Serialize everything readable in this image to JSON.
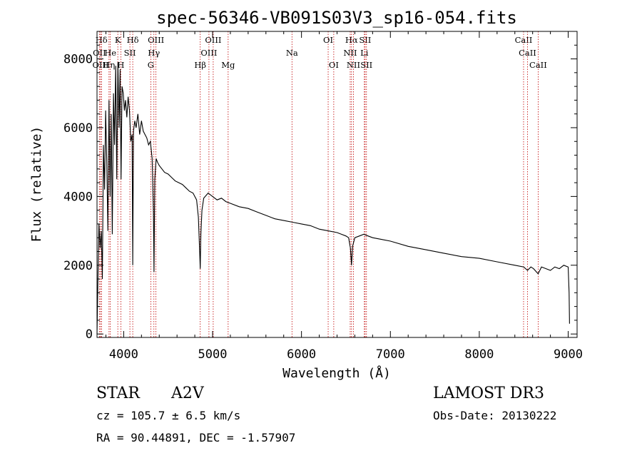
{
  "chart_data": {
    "type": "line",
    "title": "spec-56346-VB091S03V3_sp16-054.fits",
    "xlabel": "Wavelength (Å)",
    "ylabel": "Flux (relative)",
    "xlim": [
      3700,
      9100
    ],
    "ylim": [
      -100,
      8800
    ],
    "xticks": [
      4000,
      5000,
      6000,
      7000,
      8000,
      9000
    ],
    "yticks": [
      0,
      2000,
      4000,
      6000,
      8000
    ],
    "series": [
      {
        "name": "spectrum",
        "x": [
          3700,
          3710,
          3722,
          3735,
          3748,
          3760,
          3772,
          3785,
          3797,
          3810,
          3822,
          3835,
          3848,
          3860,
          3872,
          3885,
          3897,
          3910,
          3922,
          3935,
          3948,
          3960,
          3970,
          3982,
          3995,
          4008,
          4020,
          4035,
          4050,
          4065,
          4080,
          4095,
          4102,
          4110,
          4125,
          4140,
          4160,
          4180,
          4200,
          4220,
          4240,
          4260,
          4280,
          4300,
          4320,
          4335,
          4341,
          4350,
          4365,
          4380,
          4400,
          4430,
          4460,
          4500,
          4540,
          4580,
          4620,
          4660,
          4700,
          4740,
          4780,
          4820,
          4840,
          4855,
          4861,
          4868,
          4880,
          4900,
          4950,
          5000,
          5050,
          5100,
          5150,
          5200,
          5300,
          5400,
          5500,
          5600,
          5700,
          5800,
          5900,
          6000,
          6100,
          6200,
          6300,
          6400,
          6450,
          6500,
          6530,
          6550,
          6563,
          6575,
          6600,
          6650,
          6700,
          6750,
          6800,
          6900,
          7000,
          7200,
          7400,
          7600,
          7800,
          8000,
          8200,
          8400,
          8500,
          8542,
          8580,
          8610,
          8662,
          8700,
          8750,
          8800,
          8850,
          8900,
          8950,
          9000,
          9010,
          9015
        ],
        "y": [
          0,
          1500,
          3200,
          2500,
          3000,
          1600,
          5500,
          4200,
          6500,
          5000,
          3000,
          6800,
          4000,
          6400,
          2900,
          7000,
          5500,
          7800,
          4500,
          7900,
          6000,
          7700,
          4500,
          7200,
          7000,
          6500,
          6800,
          6300,
          6900,
          6500,
          5600,
          5800,
          2000,
          5900,
          6200,
          6000,
          6400,
          5800,
          6200,
          5900,
          5800,
          5700,
          5500,
          5600,
          5100,
          3500,
          1800,
          4500,
          5100,
          5000,
          4900,
          4800,
          4700,
          4650,
          4550,
          4450,
          4400,
          4350,
          4250,
          4150,
          4100,
          3900,
          3400,
          2400,
          1900,
          2900,
          3600,
          3950,
          4100,
          4000,
          3900,
          3950,
          3850,
          3800,
          3700,
          3650,
          3550,
          3450,
          3350,
          3300,
          3250,
          3200,
          3150,
          3050,
          3000,
          2950,
          2900,
          2850,
          2800,
          2500,
          2000,
          2550,
          2800,
          2850,
          2900,
          2850,
          2800,
          2750,
          2700,
          2550,
          2450,
          2350,
          2250,
          2200,
          2100,
          2000,
          1950,
          1850,
          1950,
          1900,
          1750,
          1950,
          1900,
          1850,
          1950,
          1900,
          2000,
          1950,
          1200,
          300
        ]
      }
    ],
    "lines": [
      {
        "name": "Hδ",
        "x": 3750,
        "row": 0
      },
      {
        "name": "K",
        "x": 3934,
        "row": 0
      },
      {
        "name": "Hδ",
        "x": 4102,
        "row": 0
      },
      {
        "name": "OIII",
        "x": 4363,
        "row": 0
      },
      {
        "name": "OIII",
        "x": 5007,
        "row": 0
      },
      {
        "name": "OI",
        "x": 6300,
        "row": 0
      },
      {
        "name": "Hα",
        "x": 6563,
        "row": 0
      },
      {
        "name": "SII",
        "x": 6716,
        "row": 0
      },
      {
        "name": "CaII",
        "x": 8498,
        "row": 0
      },
      {
        "name": "OII",
        "x": 3727,
        "row": 1
      },
      {
        "name": "He",
        "x": 3850,
        "row": 1
      },
      {
        "name": "SII",
        "x": 4070,
        "row": 1
      },
      {
        "name": "Hγ",
        "x": 4340,
        "row": 1
      },
      {
        "name": "OIII",
        "x": 4959,
        "row": 1
      },
      {
        "name": "Na",
        "x": 5893,
        "row": 1
      },
      {
        "name": "NII",
        "x": 6548,
        "row": 1
      },
      {
        "name": "Li",
        "x": 6707,
        "row": 1
      },
      {
        "name": "CaII",
        "x": 8542,
        "row": 1
      },
      {
        "name": "OIII",
        "x": 3740,
        "row": 2
      },
      {
        "name": "Hη",
        "x": 3835,
        "row": 2
      },
      {
        "name": "H",
        "x": 3968,
        "row": 2
      },
      {
        "name": "G",
        "x": 4305,
        "row": 2
      },
      {
        "name": "Hβ",
        "x": 4861,
        "row": 2
      },
      {
        "name": "Mg",
        "x": 5175,
        "row": 2
      },
      {
        "name": "OI",
        "x": 6363,
        "row": 2
      },
      {
        "name": "NII",
        "x": 6584,
        "row": 2
      },
      {
        "name": "SII",
        "x": 6731,
        "row": 2
      },
      {
        "name": "CaII",
        "x": 8662,
        "row": 2
      }
    ]
  },
  "info": {
    "object_type": "STAR",
    "subclass": "A2V",
    "survey": "LAMOST DR3",
    "cz": "cz = 105.7 ± 6.5 km/s",
    "obs_date": "Obs-Date: 20130222",
    "coords": "RA =  90.44891, DEC =  -1.57907"
  }
}
